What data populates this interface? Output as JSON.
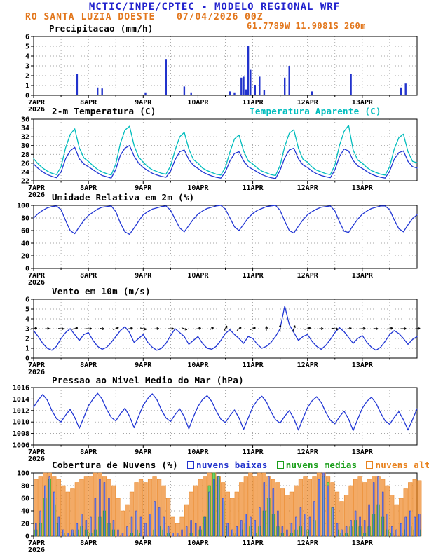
{
  "header": {
    "title": "MCTIC/INPE/CPTEC - MODELO REGIONAL WRF",
    "station": "RO SANTA LUZIA DOESTE",
    "run_datetime": "07/04/2026 00Z",
    "location": "61.7789W 11.9081S 260m"
  },
  "colors": {
    "header_blue": "#2121cd",
    "orange": "#e2761b",
    "line_blue": "#2136d4",
    "cyan": "#00bdbd",
    "precip_bar": "#2233cc",
    "cloud_low": "#2233cc",
    "cloud_mid": "#1a9e1a",
    "cloud_high": "#e8821e"
  },
  "x_axis": {
    "day_labels": [
      "7APR",
      "8APR",
      "9APR",
      "10APR",
      "11APR",
      "12APR",
      "13APR"
    ],
    "year_label": "2026",
    "total_hours": 168
  },
  "chart_data": [
    {
      "id": "precip",
      "type": "bar",
      "title": "Precipitacao (mm/h)",
      "ylim": [
        0,
        6
      ],
      "yticks": [
        0,
        1,
        2,
        3,
        4,
        5,
        6
      ],
      "bar_color": "#2233cc",
      "bars": [
        [
          19,
          2.2
        ],
        [
          28,
          0.8
        ],
        [
          30,
          0.7
        ],
        [
          49,
          0.3
        ],
        [
          58,
          3.7
        ],
        [
          66,
          0.9
        ],
        [
          69,
          0.3
        ],
        [
          86,
          0.4
        ],
        [
          88,
          0.3
        ],
        [
          91,
          1.8
        ],
        [
          92,
          1.9
        ],
        [
          93,
          0.6
        ],
        [
          94,
          5.0
        ],
        [
          95,
          2.6
        ],
        [
          97,
          1.0
        ],
        [
          99,
          1.9
        ],
        [
          101,
          0.5
        ],
        [
          110,
          1.8
        ],
        [
          112,
          3.0
        ],
        [
          122,
          0.4
        ],
        [
          139,
          2.2
        ],
        [
          161,
          0.8
        ],
        [
          163,
          1.2
        ]
      ]
    },
    {
      "id": "temp",
      "type": "line",
      "title": "2-m Temperatura (C)",
      "secondary_title": "Temperatura Aparente (C)",
      "ylim": [
        22,
        36
      ],
      "yticks": [
        22,
        24,
        26,
        28,
        30,
        32,
        34,
        36
      ],
      "step_hours": 2,
      "series": [
        {
          "name": "2-m Temperatura (C)",
          "color": "#2136d4",
          "values": [
            25.8,
            24.8,
            24.0,
            23.4,
            23.0,
            22.7,
            24.0,
            27.0,
            28.8,
            29.6,
            27.0,
            25.8,
            25.2,
            24.5,
            23.8,
            23.2,
            22.9,
            22.6,
            24.6,
            27.8,
            29.4,
            30.0,
            27.6,
            26.0,
            25.0,
            24.3,
            23.7,
            23.3,
            23.0,
            22.8,
            24.2,
            26.8,
            28.6,
            29.0,
            26.8,
            25.5,
            24.8,
            24.0,
            23.5,
            23.1,
            22.8,
            22.6,
            24.0,
            26.5,
            28.2,
            28.6,
            26.5,
            25.2,
            24.6,
            24.0,
            23.4,
            23.0,
            22.7,
            22.5,
            24.4,
            27.2,
            29.0,
            29.4,
            27.0,
            25.6,
            25.0,
            24.2,
            23.6,
            23.2,
            22.9,
            22.7,
            24.5,
            27.5,
            29.2,
            28.8,
            26.6,
            25.4,
            24.8,
            24.1,
            23.5,
            23.1,
            22.8,
            22.6,
            24.2,
            26.9,
            28.4,
            28.8,
            26.4,
            25.2,
            24.9
          ]
        },
        {
          "name": "Temperatura Aparente (C)",
          "color": "#00bdbd",
          "values": [
            27.0,
            25.8,
            24.9,
            24.2,
            23.7,
            23.4,
            25.2,
            29.5,
            32.5,
            33.8,
            29.5,
            27.2,
            26.4,
            25.4,
            24.6,
            24.0,
            23.6,
            23.3,
            25.8,
            30.5,
            33.5,
            34.4,
            30.0,
            27.4,
            26.2,
            25.2,
            24.5,
            24.1,
            23.7,
            23.5,
            25.4,
            29.0,
            32.0,
            33.0,
            29.2,
            26.8,
            26.0,
            24.9,
            24.3,
            23.9,
            23.5,
            23.3,
            25.0,
            28.5,
            31.5,
            32.4,
            28.8,
            26.5,
            25.8,
            24.9,
            24.2,
            23.8,
            23.4,
            23.2,
            25.5,
            29.8,
            32.8,
            33.6,
            29.4,
            26.9,
            26.2,
            25.1,
            24.4,
            24.0,
            23.6,
            23.4,
            25.6,
            30.0,
            33.2,
            34.6,
            29.0,
            26.7,
            26.0,
            25.0,
            24.3,
            23.9,
            23.5,
            23.3,
            25.2,
            29.2,
            31.8,
            32.6,
            28.6,
            26.4,
            26.1
          ]
        }
      ]
    },
    {
      "id": "rh",
      "type": "line",
      "title": "Umidade Relativa em 2m (%)",
      "ylim": [
        0,
        100
      ],
      "yticks": [
        0,
        20,
        40,
        60,
        80,
        100
      ],
      "step_hours": 2,
      "series": [
        {
          "name": "Umidade Relativa em 2m (%)",
          "color": "#2136d4",
          "values": [
            80,
            87,
            92,
            96,
            98,
            99,
            93,
            76,
            60,
            55,
            66,
            76,
            84,
            89,
            94,
            97,
            98,
            99,
            90,
            72,
            58,
            54,
            64,
            75,
            85,
            90,
            94,
            96,
            98,
            99,
            92,
            78,
            64,
            58,
            68,
            78,
            86,
            91,
            95,
            97,
            99,
            100,
            94,
            80,
            66,
            60,
            70,
            80,
            87,
            92,
            95,
            98,
            99,
            100,
            92,
            75,
            60,
            56,
            67,
            77,
            85,
            90,
            94,
            97,
            98,
            99,
            91,
            74,
            59,
            57,
            68,
            78,
            86,
            91,
            95,
            97,
            99,
            99,
            93,
            77,
            63,
            58,
            69,
            79,
            85
          ]
        }
      ]
    },
    {
      "id": "wind",
      "type": "line",
      "title": "Vento em 10m (m/s)",
      "ylim": [
        0,
        6
      ],
      "yticks": [
        0,
        1,
        2,
        3,
        4,
        5,
        6
      ],
      "step_hours": 2,
      "barb_interval_hours": 6,
      "barb_level": 3,
      "barb_dirs_deg": [
        10,
        5,
        -5,
        15,
        0,
        -10,
        20,
        10,
        -15,
        5,
        0,
        -20,
        10,
        30,
        60,
        40,
        20,
        85,
        90,
        70,
        15,
        0,
        -10,
        10,
        5,
        -5,
        10,
        0,
        8
      ],
      "series": [
        {
          "name": "Vento em 10m (m/s)",
          "color": "#2136d4",
          "values": [
            2.8,
            2.2,
            1.5,
            1.0,
            0.8,
            1.2,
            2.0,
            2.6,
            3.0,
            2.4,
            1.8,
            2.4,
            2.6,
            1.8,
            1.2,
            0.9,
            1.1,
            1.6,
            2.2,
            2.8,
            3.2,
            2.6,
            1.6,
            2.0,
            2.4,
            1.6,
            1.1,
            0.8,
            1.0,
            1.5,
            2.3,
            3.0,
            2.6,
            2.2,
            1.4,
            1.8,
            2.2,
            1.5,
            1.0,
            0.9,
            1.2,
            1.8,
            2.5,
            2.9,
            2.4,
            2.0,
            1.5,
            2.2,
            2.0,
            1.4,
            1.0,
            1.2,
            1.6,
            2.2,
            3.0,
            5.3,
            3.4,
            2.6,
            1.8,
            2.2,
            2.4,
            1.7,
            1.2,
            0.9,
            1.3,
            1.9,
            2.6,
            3.1,
            2.7,
            2.1,
            1.5,
            2.0,
            2.3,
            1.6,
            1.1,
            0.8,
            1.1,
            1.7,
            2.4,
            2.8,
            2.5,
            2.0,
            1.4,
            1.9,
            2.2
          ]
        }
      ]
    },
    {
      "id": "pres",
      "type": "line",
      "title": "Pressao ao Nivel Medio do Mar (hPa)",
      "ylim": [
        1006,
        1016
      ],
      "yticks": [
        1006,
        1008,
        1010,
        1012,
        1014,
        1016
      ],
      "step_hours": 2,
      "series": [
        {
          "name": "Pressao ao Nivel Medio do Mar (hPa)",
          "color": "#2136d4",
          "values": [
            1012.6,
            1013.8,
            1014.8,
            1013.8,
            1012.0,
            1010.6,
            1010.0,
            1011.2,
            1012.2,
            1010.8,
            1008.9,
            1010.8,
            1012.8,
            1014.0,
            1015.0,
            1014.0,
            1012.2,
            1010.8,
            1010.2,
            1011.4,
            1012.4,
            1011.0,
            1009.0,
            1011.0,
            1012.9,
            1014.1,
            1014.9,
            1013.9,
            1012.1,
            1010.7,
            1010.1,
            1011.3,
            1012.3,
            1010.9,
            1008.8,
            1010.9,
            1012.7,
            1013.9,
            1014.6,
            1013.6,
            1011.9,
            1010.5,
            1009.9,
            1011.1,
            1012.1,
            1010.7,
            1008.7,
            1010.7,
            1012.6,
            1013.8,
            1014.5,
            1013.5,
            1011.8,
            1010.4,
            1009.8,
            1011.0,
            1012.0,
            1010.6,
            1008.6,
            1010.6,
            1012.5,
            1013.7,
            1014.4,
            1013.4,
            1011.7,
            1010.3,
            1009.7,
            1010.9,
            1011.9,
            1010.5,
            1008.5,
            1010.5,
            1012.4,
            1013.6,
            1014.3,
            1013.3,
            1011.6,
            1010.2,
            1009.6,
            1010.8,
            1011.8,
            1010.4,
            1008.6,
            1010.4,
            1012.3
          ]
        }
      ]
    },
    {
      "id": "clouds",
      "type": "bar-multi",
      "title": "Cobertura de Nuvens (%)",
      "ylim": [
        0,
        100
      ],
      "yticks": [
        0,
        20,
        40,
        60,
        80,
        100
      ],
      "step_hours": 2,
      "legend": [
        {
          "label": "nuvens baixas",
          "color": "#2233cc"
        },
        {
          "label": "nuvens medias",
          "color": "#1a9e1a"
        },
        {
          "label": "nuvens altas",
          "color": "#e8821e"
        }
      ],
      "series": [
        {
          "name": "nuvens baixas",
          "fill": "#8090e0",
          "stroke": "#2233cc",
          "values": [
            20,
            40,
            80,
            95,
            70,
            30,
            10,
            5,
            10,
            20,
            35,
            25,
            30,
            60,
            90,
            85,
            60,
            25,
            10,
            5,
            15,
            30,
            40,
            30,
            20,
            35,
            55,
            45,
            30,
            15,
            5,
            5,
            10,
            15,
            25,
            20,
            15,
            30,
            70,
            90,
            95,
            60,
            20,
            10,
            15,
            25,
            35,
            30,
            25,
            45,
            85,
            95,
            75,
            40,
            15,
            10,
            20,
            30,
            45,
            35,
            30,
            55,
            90,
            100,
            80,
            45,
            20,
            10,
            15,
            25,
            40,
            30,
            25,
            50,
            85,
            95,
            70,
            35,
            15,
            10,
            20,
            30,
            40,
            30,
            35
          ]
        },
        {
          "name": "nuvens medias",
          "fill": "#6fd06f",
          "stroke": "#1a9e1a",
          "values": [
            10,
            20,
            60,
            90,
            50,
            20,
            5,
            0,
            5,
            10,
            15,
            10,
            5,
            10,
            30,
            40,
            20,
            10,
            0,
            0,
            0,
            5,
            10,
            5,
            0,
            5,
            10,
            15,
            10,
            5,
            0,
            0,
            0,
            0,
            5,
            0,
            10,
            30,
            80,
            100,
            95,
            55,
            15,
            5,
            5,
            10,
            20,
            15,
            5,
            15,
            40,
            60,
            35,
            15,
            5,
            0,
            5,
            10,
            15,
            10,
            10,
            25,
            70,
            95,
            85,
            45,
            10,
            5,
            5,
            15,
            25,
            15,
            5,
            15,
            35,
            50,
            30,
            10,
            5,
            0,
            5,
            10,
            15,
            10,
            10
          ]
        },
        {
          "name": "nuvens altas",
          "fill": "#f3aa66",
          "stroke": "#e8821e",
          "values": [
            90,
            95,
            100,
            100,
            95,
            90,
            80,
            70,
            75,
            85,
            90,
            95,
            95,
            100,
            100,
            95,
            90,
            80,
            60,
            40,
            50,
            70,
            85,
            90,
            85,
            90,
            95,
            90,
            80,
            60,
            30,
            20,
            30,
            50,
            70,
            80,
            90,
            95,
            100,
            100,
            95,
            85,
            70,
            60,
            70,
            85,
            95,
            100,
            95,
            100,
            100,
            95,
            90,
            85,
            75,
            65,
            70,
            80,
            90,
            95,
            90,
            95,
            100,
            100,
            95,
            85,
            70,
            55,
            65,
            80,
            90,
            95,
            85,
            90,
            95,
            95,
            90,
            80,
            65,
            50,
            60,
            75,
            85,
            90,
            88
          ]
        }
      ]
    }
  ]
}
